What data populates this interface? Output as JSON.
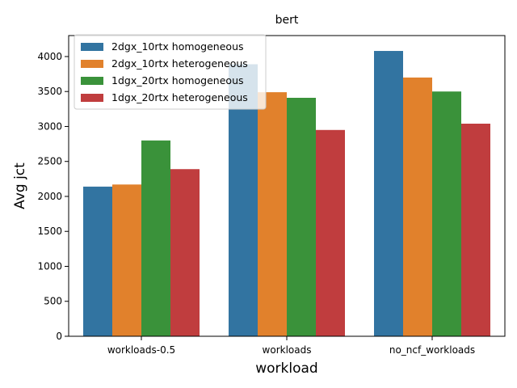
{
  "chart_data": {
    "type": "bar",
    "title": "bert",
    "xlabel": "workload",
    "ylabel": "Avg jct",
    "categories": [
      "workloads-0.5",
      "workloads",
      "no_ncf_workloads"
    ],
    "ylim": [
      0,
      4300
    ],
    "yticks": [
      0,
      500,
      1000,
      1500,
      2000,
      2500,
      3000,
      3500,
      4000
    ],
    "grid": false,
    "legend_position": "top-left",
    "series": [
      {
        "name": "2dgx_10rtx homogeneous",
        "color": "#3274a1",
        "values": [
          2140,
          3890,
          4080
        ]
      },
      {
        "name": "2dgx_10rtx heterogeneous",
        "color": "#e1812c",
        "values": [
          2170,
          3490,
          3700
        ]
      },
      {
        "name": "1dgx_20rtx homogeneous",
        "color": "#3a923a",
        "values": [
          2800,
          3410,
          3500
        ]
      },
      {
        "name": "1dgx_20rtx heterogeneous",
        "color": "#c03d3e",
        "values": [
          2390,
          2950,
          3040
        ]
      }
    ]
  }
}
